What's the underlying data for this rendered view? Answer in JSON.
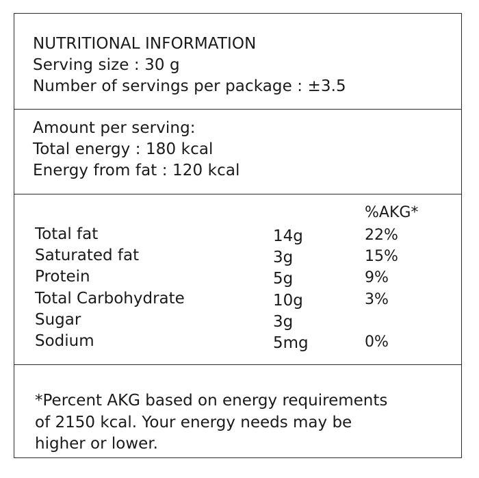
{
  "header": {
    "title": "NUTRITIONAL INFORMATION",
    "serving_size": "Serving size : 30 g",
    "servings_per_package": "Number of servings per package : ±3.5"
  },
  "energy": {
    "amount_per_serving": "Amount per serving:",
    "total_energy": "Total energy : 180 kcal",
    "energy_from_fat": "Energy from fat : 120 kcal"
  },
  "nutrients": {
    "akg_header": "%AKG*",
    "rows": [
      {
        "name": "Total fat",
        "amount": "14g",
        "akg": "22%"
      },
      {
        "name": "Saturated fat",
        "amount": "3g",
        "akg": "15%"
      },
      {
        "name": "Protein",
        "amount": "5g",
        "akg": "9%"
      },
      {
        "name": "Total Carbohydrate",
        "amount": "10g",
        "akg": "3%"
      },
      {
        "name": "Sugar",
        "amount": "3g",
        "akg": ""
      },
      {
        "name": "Sodium",
        "amount": "5mg",
        "akg": "0%"
      }
    ]
  },
  "footnote": {
    "lines": [
      "*Percent AKG based on energy requirements",
      "of 2150 kcal. Your energy needs may be",
      "higher or lower."
    ]
  }
}
